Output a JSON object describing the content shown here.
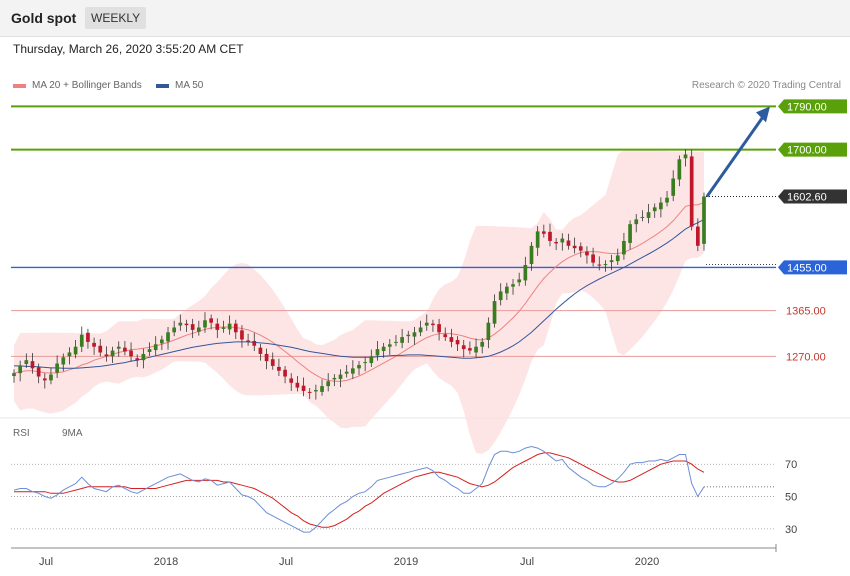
{
  "header": {
    "title": "Gold spot",
    "timeframe": "WEEKLY"
  },
  "datetime": "Thursday, March 26, 2020 3:55:20 AM CET",
  "legend": {
    "ma20_label": "MA 20 + Bollinger Bands",
    "ma50_label": "MA 50",
    "credit": "Research © 2020 Trading Central"
  },
  "rsi_legend": {
    "rsi_label": "RSI",
    "ma_label": "9MA"
  },
  "colors": {
    "green_level": "#5aa00a",
    "blue_level": "#2a64d8",
    "red_level": "#c0392b",
    "ma20": "#f08080",
    "ma50": "#34579a",
    "band_fill": "#fde0e0",
    "candle_up": "#3a7d20",
    "candle_down": "#c0182b",
    "arrow": "#2e5aa0",
    "rsi": "#6b8ed6",
    "rsi_ma": "#d62020"
  },
  "chart_data": [
    {
      "type": "candlestick",
      "title": "Gold spot",
      "timeframe": "weekly",
      "x_ticks": [
        "Jul",
        "2018",
        "Jul",
        "2019",
        "Jul",
        "2020"
      ],
      "x_tick_values": [
        "2017-07",
        "2018-01",
        "2018-07",
        "2019-01",
        "2019-07",
        "2020-01"
      ],
      "ylim": [
        1150,
        1820
      ],
      "levels": [
        {
          "value": 1790.0,
          "label": "1790.00",
          "kind": "resistance"
        },
        {
          "value": 1700.0,
          "label": "1700.00",
          "kind": "resistance"
        },
        {
          "value": 1602.6,
          "label": "1602.60",
          "kind": "last_price"
        },
        {
          "value": 1455.0,
          "label": "1455.00",
          "kind": "pivot"
        },
        {
          "value": 1365.0,
          "label": "1365.00",
          "kind": "support"
        },
        {
          "value": 1270.0,
          "label": "1270.00",
          "kind": "support"
        }
      ],
      "close_series": [
        1235,
        1250,
        1262,
        1245,
        1228,
        1220,
        1232,
        1255,
        1268,
        1278,
        1290,
        1315,
        1300,
        1290,
        1278,
        1270,
        1282,
        1290,
        1280,
        1270,
        1262,
        1275,
        1285,
        1295,
        1305,
        1320,
        1330,
        1340,
        1335,
        1325,
        1330,
        1345,
        1340,
        1325,
        1330,
        1338,
        1320,
        1305,
        1300,
        1292,
        1275,
        1260,
        1250,
        1240,
        1228,
        1215,
        1205,
        1198,
        1195,
        1200,
        1208,
        1218,
        1225,
        1232,
        1238,
        1245,
        1252,
        1258,
        1270,
        1285,
        1290,
        1295,
        1300,
        1310,
        1315,
        1320,
        1330,
        1340,
        1335,
        1320,
        1310,
        1300,
        1295,
        1285,
        1282,
        1290,
        1300,
        1340,
        1385,
        1405,
        1415,
        1420,
        1430,
        1460,
        1500,
        1530,
        1525,
        1510,
        1505,
        1515,
        1500,
        1495,
        1490,
        1480,
        1465,
        1460,
        1462,
        1470,
        1480,
        1510,
        1545,
        1555,
        1560,
        1570,
        1580,
        1590,
        1600,
        1640,
        1680,
        1690,
        1540,
        1500,
        1602.6
      ],
      "ma20": [
        1235,
        1238,
        1240,
        1240,
        1238,
        1236,
        1235,
        1236,
        1238,
        1242,
        1246,
        1252,
        1256,
        1262,
        1266,
        1270,
        1274,
        1278,
        1281,
        1284,
        1285,
        1287,
        1289,
        1292,
        1295,
        1299,
        1304,
        1309,
        1314,
        1318,
        1322,
        1326,
        1329,
        1330,
        1331,
        1331,
        1330,
        1328,
        1325,
        1320,
        1314,
        1307,
        1299,
        1290,
        1280,
        1270,
        1259,
        1249,
        1239,
        1231,
        1224,
        1220,
        1218,
        1218,
        1220,
        1224,
        1229,
        1235,
        1242,
        1249,
        1256,
        1263,
        1270,
        1278,
        1286,
        1294,
        1302,
        1309,
        1314,
        1317,
        1318,
        1317,
        1315,
        1312,
        1308,
        1305,
        1304,
        1308,
        1316,
        1326,
        1338,
        1350,
        1364,
        1380,
        1398,
        1416,
        1432,
        1445,
        1457,
        1467,
        1475,
        1481,
        1486,
        1488,
        1488,
        1487,
        1485,
        1484,
        1484,
        1486,
        1492,
        1498,
        1505,
        1513,
        1521,
        1530,
        1540,
        1552,
        1567,
        1582,
        1585,
        1585,
        1590
      ],
      "ma50": [
        1250,
        1250,
        1249,
        1249,
        1248,
        1247,
        1246,
        1246,
        1245,
        1245,
        1245,
        1246,
        1247,
        1248,
        1249,
        1251,
        1253,
        1255,
        1257,
        1260,
        1262,
        1265,
        1268,
        1271,
        1274,
        1277,
        1280,
        1283,
        1286,
        1289,
        1291,
        1293,
        1295,
        1297,
        1298,
        1299,
        1300,
        1300,
        1300,
        1299,
        1298,
        1297,
        1295,
        1293,
        1291,
        1289,
        1286,
        1283,
        1280,
        1278,
        1276,
        1274,
        1272,
        1270,
        1269,
        1268,
        1268,
        1268,
        1268,
        1269,
        1270,
        1271,
        1272,
        1272,
        1273,
        1273,
        1273,
        1272,
        1271,
        1270,
        1269,
        1268,
        1267,
        1266,
        1266,
        1267,
        1268,
        1270,
        1274,
        1279,
        1285,
        1292,
        1300,
        1310,
        1320,
        1332,
        1344,
        1356,
        1368,
        1379,
        1390,
        1400,
        1409,
        1417,
        1424,
        1431,
        1437,
        1443,
        1449,
        1455,
        1462,
        1469,
        1476,
        1483,
        1490,
        1498,
        1506,
        1515,
        1525,
        1535,
        1542,
        1548,
        1555
      ]
    },
    {
      "type": "line",
      "title": "RSI",
      "ylim": [
        20,
        85
      ],
      "y_ticks": [
        30,
        50,
        70
      ],
      "series": [
        {
          "name": "RSI",
          "values": [
            54,
            55,
            55,
            53,
            52,
            50,
            49,
            51,
            54,
            56,
            58,
            62,
            58,
            55,
            54,
            53,
            56,
            57,
            55,
            53,
            52,
            54,
            56,
            58,
            60,
            62,
            63,
            64,
            62,
            60,
            59,
            61,
            60,
            57,
            58,
            59,
            55,
            51,
            50,
            48,
            44,
            40,
            38,
            36,
            34,
            32,
            30,
            28,
            28,
            31,
            35,
            39,
            42,
            45,
            47,
            50,
            52,
            53,
            56,
            60,
            61,
            62,
            63,
            64,
            65,
            66,
            67,
            68,
            66,
            62,
            60,
            57,
            55,
            52,
            52,
            55,
            58,
            68,
            76,
            78,
            78,
            77,
            78,
            80,
            81,
            80,
            78,
            75,
            72,
            73,
            68,
            65,
            62,
            60,
            57,
            56,
            56,
            58,
            61,
            65,
            70,
            71,
            71,
            72,
            72,
            73,
            72,
            74,
            76,
            76,
            58,
            50,
            56
          ]
        },
        {
          "name": "9MA",
          "values": [
            53,
            53,
            53,
            53,
            53,
            53,
            52,
            52,
            52,
            53,
            54,
            55,
            56,
            56,
            56,
            56,
            56,
            56,
            56,
            55,
            55,
            55,
            55,
            55,
            56,
            57,
            58,
            59,
            60,
            60,
            60,
            60,
            60,
            60,
            59,
            59,
            58,
            57,
            56,
            55,
            53,
            51,
            49,
            46,
            43,
            40,
            38,
            35,
            33,
            32,
            31,
            31,
            32,
            34,
            36,
            39,
            41,
            44,
            46,
            49,
            52,
            54,
            56,
            58,
            60,
            62,
            63,
            64,
            65,
            65,
            64,
            63,
            62,
            60,
            58,
            57,
            56,
            57,
            59,
            62,
            65,
            68,
            70,
            72,
            74,
            76,
            77,
            77,
            76,
            75,
            74,
            72,
            70,
            68,
            66,
            64,
            62,
            60,
            59,
            59,
            60,
            62,
            64,
            66,
            68,
            70,
            71,
            72,
            72,
            72,
            70,
            67,
            65
          ]
        }
      ]
    }
  ]
}
